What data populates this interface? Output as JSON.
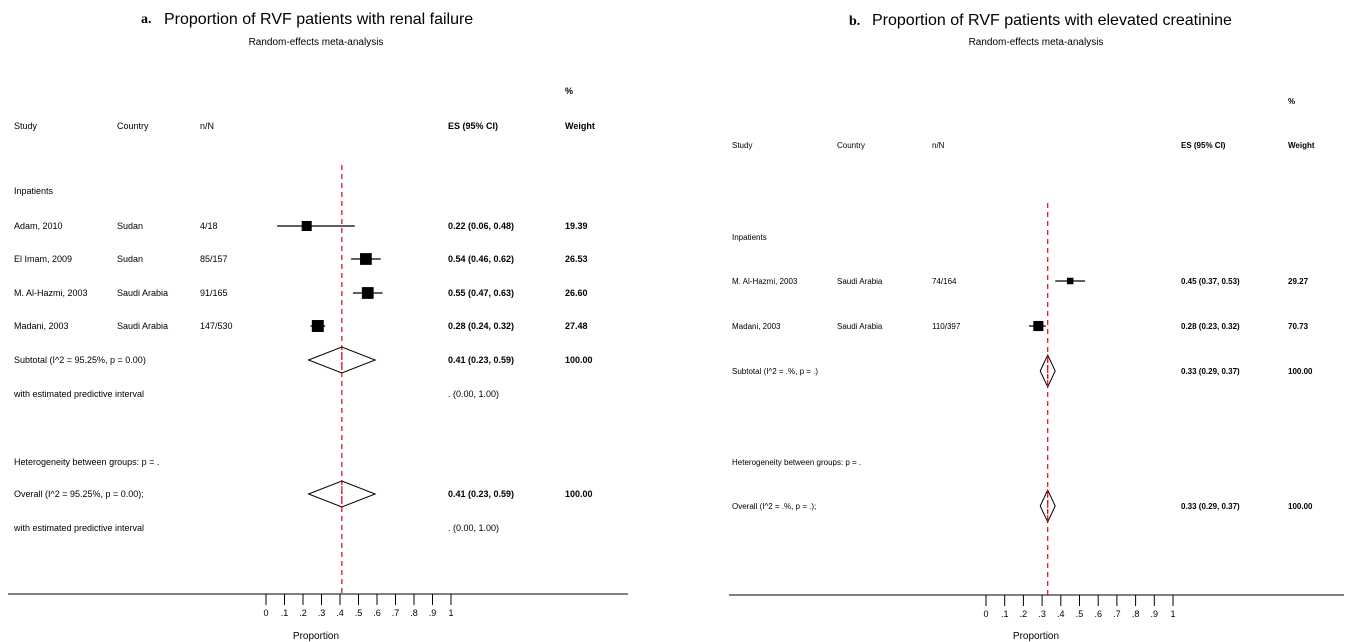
{
  "chart_data": [
    {
      "type": "forest",
      "panel_letter": "a.",
      "title": "Proportion of RVF patients with renal failure",
      "subtitle": "Random-effects meta-analysis",
      "columns": {
        "study": "Study",
        "country": "Country",
        "nN": "n/N",
        "es": "ES (95% CI)",
        "pct": "%",
        "weight": "Weight"
      },
      "group_label": "Inpatients",
      "studies": [
        {
          "study": "Adam, 2010",
          "country": "Sudan",
          "nN": "4/18",
          "es": 0.22,
          "lo": 0.06,
          "hi": 0.48,
          "es_text": "0.22 (0.06, 0.48)",
          "weight": 19.39,
          "weight_text": "19.39"
        },
        {
          "study": "El Imam, 2009",
          "country": "Sudan",
          "nN": "85/157",
          "es": 0.54,
          "lo": 0.46,
          "hi": 0.62,
          "es_text": "0.54 (0.46, 0.62)",
          "weight": 26.53,
          "weight_text": "26.53"
        },
        {
          "study": "M. Al-Hazmi, 2003",
          "country": "Saudi Arabia",
          "nN": "91/165",
          "es": 0.55,
          "lo": 0.47,
          "hi": 0.63,
          "es_text": "0.55 (0.47, 0.63)",
          "weight": 26.6,
          "weight_text": "26.60"
        },
        {
          "study": "Madani, 2003",
          "country": "Saudi Arabia",
          "nN": "147/530",
          "es": 0.28,
          "lo": 0.24,
          "hi": 0.32,
          "es_text": "0.28 (0.24, 0.32)",
          "weight": 27.48,
          "weight_text": "27.48"
        }
      ],
      "subtotal": {
        "label": "Subtotal  (I^2 = 95.25%, p = 0.00)",
        "es": 0.41,
        "lo": 0.23,
        "hi": 0.59,
        "es_text": "0.41 (0.23, 0.59)",
        "weight_text": "100.00"
      },
      "subtotal_pi": {
        "label": "with estimated predictive interval",
        "es_text": ".   (0.00, 1.00)"
      },
      "heterogeneity": "Heterogeneity between groups: p = .",
      "overall": {
        "label": "Overall  (I^2 = 95.25%, p = 0.00);",
        "es": 0.41,
        "lo": 0.23,
        "hi": 0.59,
        "es_text": "0.41 (0.23, 0.59)",
        "weight_text": "100.00"
      },
      "overall_pi": {
        "label": "with estimated predictive interval",
        "es_text": ".   (0.00, 1.00)"
      },
      "ref_line": 0.41,
      "xticks": [
        0,
        0.1,
        0.2,
        0.3,
        0.4,
        0.5,
        0.6,
        0.7,
        0.8,
        0.9,
        1
      ],
      "xtick_labels": [
        "0",
        ".1",
        ".2",
        ".3",
        ".4",
        ".5",
        ".6",
        ".7",
        ".8",
        ".9",
        "1"
      ],
      "xlabel": "Proportion",
      "xlim": [
        0,
        1
      ]
    },
    {
      "type": "forest",
      "panel_letter": "b.",
      "title": "Proportion of RVF patients with elevated creatinine",
      "subtitle": "Random-effects meta-analysis",
      "columns": {
        "study": "Study",
        "country": "Country",
        "nN": "n/N",
        "es": "ES (95% CI)",
        "pct": "%",
        "weight": "Weight"
      },
      "group_label": "Inpatients",
      "studies": [
        {
          "study": "M. Al-Hazmi, 2003",
          "country": "Saudi Arabia",
          "nN": "74/164",
          "es": 0.45,
          "lo": 0.37,
          "hi": 0.53,
          "es_text": "0.45 (0.37, 0.53)",
          "weight": 29.27,
          "weight_text": "29.27"
        },
        {
          "study": "Madani, 2003",
          "country": "Saudi Arabia",
          "nN": "110/397",
          "es": 0.28,
          "lo": 0.23,
          "hi": 0.32,
          "es_text": "0.28 (0.23, 0.32)",
          "weight": 70.73,
          "weight_text": "70.73"
        }
      ],
      "subtotal": {
        "label": "Subtotal  (I^2 = .%, p = .)",
        "es": 0.33,
        "lo": 0.29,
        "hi": 0.37,
        "es_text": "0.33 (0.29, 0.37)",
        "weight_text": "100.00"
      },
      "heterogeneity": "Heterogeneity between groups: p = .",
      "overall": {
        "label": "Overall  (I^2 = .%, p = .);",
        "es": 0.33,
        "lo": 0.29,
        "hi": 0.37,
        "es_text": "0.33 (0.29, 0.37)",
        "weight_text": "100.00"
      },
      "ref_line": 0.33,
      "xticks": [
        0,
        0.1,
        0.2,
        0.3,
        0.4,
        0.5,
        0.6,
        0.7,
        0.8,
        0.9,
        1
      ],
      "xtick_labels": [
        "0",
        ".1",
        ".2",
        ".3",
        ".4",
        ".5",
        ".6",
        ".7",
        ".8",
        ".9",
        "1"
      ],
      "xlabel": "Proportion",
      "xlim": [
        0,
        1
      ]
    }
  ],
  "colors": {
    "ref_line": "#e8001c",
    "ink": "#000000"
  }
}
